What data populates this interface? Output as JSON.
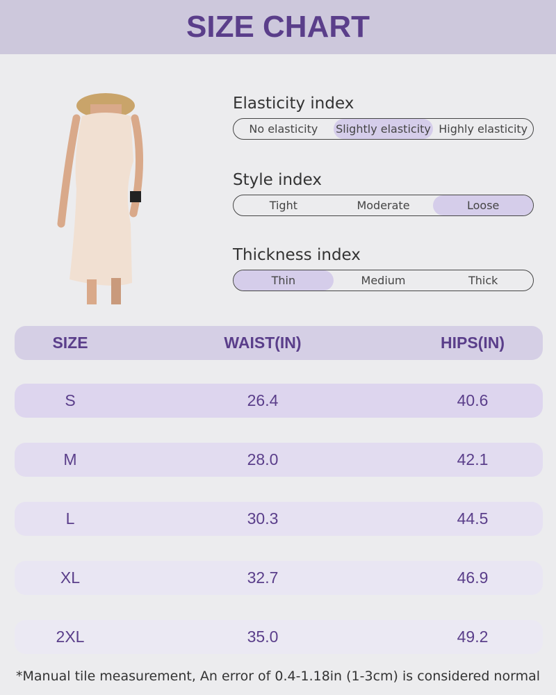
{
  "header": {
    "title": "SIZE CHART"
  },
  "indices": [
    {
      "label": "Elasticity index",
      "options": [
        "No elasticity",
        "Slightly elasticity",
        "Highly elasticity"
      ]
    },
    {
      "label": "Style index",
      "options": [
        "Tight",
        "Moderate",
        "Loose"
      ]
    },
    {
      "label": "Thickness index",
      "options": [
        "Thin",
        "Medium",
        "Thick"
      ]
    }
  ],
  "table": {
    "columns": [
      "SIZE",
      "WAIST(IN)",
      "HIPS(IN)"
    ],
    "rows": [
      [
        "S",
        "26.4",
        "40.6"
      ],
      [
        "M",
        "28.0",
        "42.1"
      ],
      [
        "L",
        "30.3",
        "44.5"
      ],
      [
        "XL",
        "32.7",
        "46.9"
      ],
      [
        "2XL",
        "35.0",
        "49.2"
      ]
    ]
  },
  "footnote": "*Manual tile measurement, An error of 0.4-1.18in (1-3cm) is considered normal"
}
